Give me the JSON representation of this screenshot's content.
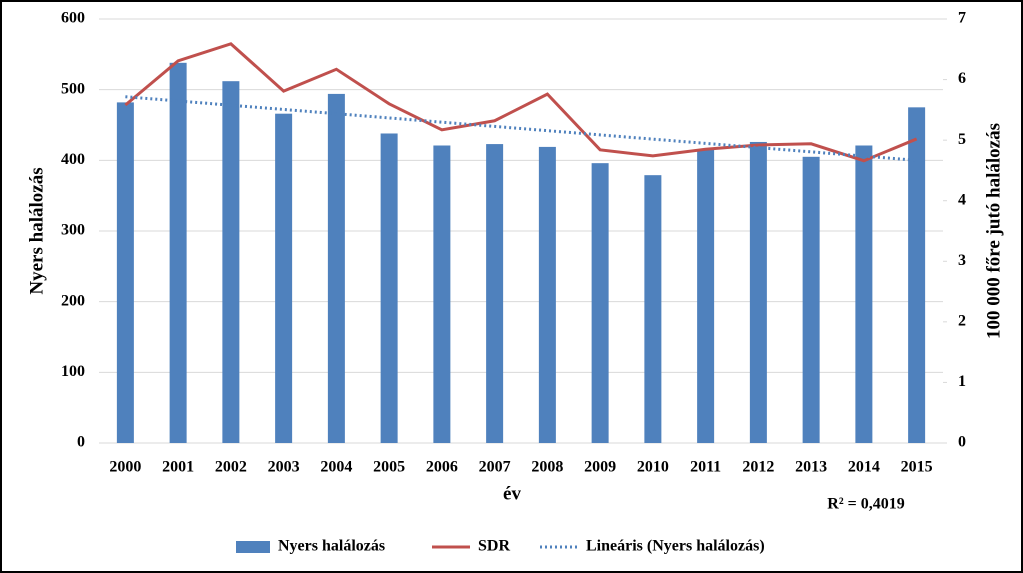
{
  "chart_data": {
    "type": "bar",
    "categories": [
      "2000",
      "2001",
      "2002",
      "2003",
      "2004",
      "2005",
      "2006",
      "2007",
      "2008",
      "2009",
      "2010",
      "2011",
      "2012",
      "2013",
      "2014",
      "2015"
    ],
    "x_label": "év",
    "y_label": "Nyers halálozás",
    "y2_label": "100 000 főre jutó halálozás",
    "annotation": "R² = 0,4019",
    "ylim": [
      0,
      600
    ],
    "yticks": [
      0,
      100,
      200,
      300,
      400,
      500,
      600
    ],
    "y2lim": [
      0,
      7
    ],
    "y2ticks": [
      0,
      1,
      2,
      3,
      4,
      5,
      6,
      7
    ],
    "grid": true,
    "legend": "bottom",
    "series": [
      {
        "name": "Nyers halálozás",
        "type": "bar",
        "color": "#4f81bd",
        "values": [
          482,
          538,
          512,
          466,
          494,
          438,
          421,
          423,
          419,
          396,
          379,
          415,
          426,
          405,
          421,
          475
        ]
      },
      {
        "name": "SDR",
        "type": "line",
        "axis": "y2",
        "color": "#c0504d",
        "values": [
          5.58,
          6.31,
          6.59,
          5.81,
          6.17,
          5.6,
          5.17,
          5.32,
          5.76,
          4.84,
          4.74,
          4.85,
          4.92,
          4.94,
          4.66,
          5.02
        ]
      },
      {
        "name": "Lineáris (Nyers halálozás)",
        "type": "dotted",
        "color": "#4f81bd",
        "values": [
          490,
          484,
          478,
          472,
          466,
          460,
          454,
          448,
          442,
          436,
          430,
          424,
          418,
          412,
          406,
          400
        ]
      }
    ]
  }
}
